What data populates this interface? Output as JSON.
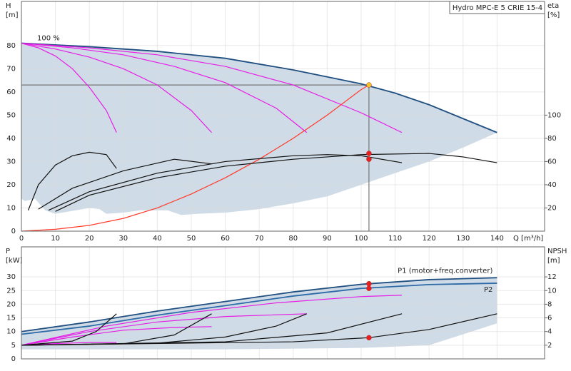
{
  "chart_data": [
    {
      "type": "line",
      "title": "Hydro MPC-E 5 CRIE 15-4",
      "ylabel": "H",
      "yunit": "[m]",
      "y2label": "eta",
      "y2unit": "[%]",
      "xlabel": "Q [m³/h]",
      "xlim": [
        0,
        154
      ],
      "ylim": [
        0,
        99
      ],
      "y2lim": [
        0,
        198
      ],
      "xticks": [
        0,
        10,
        20,
        30,
        40,
        50,
        60,
        70,
        80,
        90,
        100,
        110,
        120,
        130,
        140
      ],
      "yticks": [
        0,
        10,
        20,
        30,
        40,
        50,
        60,
        70,
        80
      ],
      "y2ticks": [
        20,
        40,
        60,
        80,
        100
      ],
      "grid": true,
      "envelope": {
        "color": "#cfdbe6",
        "x": [
          0,
          20,
          40,
          60,
          80,
          100,
          110,
          120,
          130,
          140,
          130,
          120,
          110,
          100,
          90,
          80,
          70,
          60,
          52,
          47,
          43,
          35,
          30,
          25,
          23,
          20,
          12,
          10,
          7,
          4,
          1,
          0
        ],
        "values": [
          81,
          79.5,
          77.5,
          74.5,
          69.5,
          63.5,
          59.5,
          54.5,
          48.5,
          42.5,
          36,
          30,
          25,
          20,
          15,
          12,
          9.5,
          8,
          7.5,
          7,
          9,
          9,
          8,
          7.5,
          9.5,
          10,
          8,
          7.5,
          9,
          14,
          13,
          14
        ]
      },
      "series": [
        {
          "name": "100 %",
          "color": "#1f4e80",
          "x": [
            0,
            20,
            40,
            60,
            80,
            100,
            110,
            120,
            130,
            140
          ],
          "values": [
            81,
            79.5,
            77.5,
            74.5,
            69.5,
            63.5,
            59.5,
            54.5,
            48.5,
            42.5
          ]
        },
        {
          "color": "#e61ee6",
          "x": [
            0,
            5,
            10,
            15,
            20,
            25,
            28
          ],
          "values": [
            81,
            79,
            75.5,
            70,
            62,
            52,
            42.5
          ]
        },
        {
          "color": "#e61ee6",
          "x": [
            0,
            10,
            20,
            30,
            40,
            50,
            56
          ],
          "values": [
            81,
            78.5,
            75,
            70,
            63,
            52,
            42.5
          ]
        },
        {
          "color": "#e61ee6",
          "x": [
            0,
            15,
            30,
            45,
            60,
            75,
            84
          ],
          "values": [
            81,
            79,
            76,
            71,
            64,
            53,
            42.5
          ]
        },
        {
          "color": "#e61ee6",
          "x": [
            0,
            20,
            40,
            60,
            80,
            100,
            112
          ],
          "values": [
            81,
            79,
            76,
            71,
            63,
            51,
            42.5
          ]
        },
        {
          "color": "#ff3a2a",
          "x": [
            0,
            10,
            20,
            30,
            40,
            50,
            60,
            70,
            80,
            90,
            100,
            102.3
          ],
          "values": [
            0,
            0.8,
            2.5,
            5.5,
            10,
            16,
            23,
            31,
            40,
            50,
            61,
            63
          ]
        },
        {
          "color": "#111111",
          "axis": "y2",
          "x": [
            2,
            5,
            10,
            15,
            20,
            25,
            28
          ],
          "values": [
            18,
            40,
            57,
            65,
            68,
            66,
            54
          ]
        },
        {
          "color": "#111111",
          "axis": "y2",
          "x": [
            5,
            15,
            30,
            45,
            56
          ],
          "values": [
            19,
            37,
            52,
            62,
            58
          ]
        },
        {
          "color": "#111111",
          "axis": "y2",
          "x": [
            8,
            20,
            40,
            60,
            80,
            90,
            100,
            112
          ],
          "values": [
            18,
            34,
            50,
            60,
            65,
            66,
            65,
            59
          ]
        },
        {
          "color": "#111111",
          "axis": "y2",
          "x": [
            10,
            20,
            40,
            60,
            80,
            100,
            120,
            130,
            140
          ],
          "values": [
            17,
            31,
            46,
            56,
            62,
            66,
            67,
            64,
            59
          ]
        }
      ],
      "points": [
        {
          "x": 102.3,
          "y": 63,
          "color": "#f5c02a"
        },
        {
          "x": 102.3,
          "y": 67,
          "axis": "y2",
          "color": "#e62020"
        },
        {
          "x": 102.3,
          "y": 62,
          "axis": "y2",
          "color": "#e62020"
        }
      ]
    },
    {
      "type": "line",
      "ylabel": "P",
      "yunit": "[kW]",
      "y2label": "NPSH",
      "y2unit": "[m]",
      "xlim": [
        0,
        154
      ],
      "ylim": [
        0,
        41
      ],
      "y2lim": [
        0,
        16.4
      ],
      "xticks": [
        0,
        10,
        20,
        30,
        40,
        50,
        60,
        70,
        80,
        90,
        100,
        110,
        120,
        130,
        140
      ],
      "yticks": [
        0,
        5,
        10,
        15,
        20,
        25,
        30
      ],
      "y2ticks": [
        2,
        4,
        6,
        8,
        10,
        12
      ],
      "grid": true,
      "envelope": {
        "color": "#cfdbe6",
        "x": [
          0,
          20,
          40,
          60,
          80,
          100,
          120,
          140,
          140,
          120,
          100,
          60,
          20,
          0
        ],
        "values": [
          10,
          13.5,
          17.5,
          21,
          24.5,
          27.3,
          29,
          29.7,
          13,
          5,
          4,
          3.5,
          3.5,
          3.5
        ]
      },
      "series": [
        {
          "name": "P1 (motor+freq.converter)",
          "color": "#1f4e80",
          "x": [
            0,
            20,
            40,
            60,
            80,
            100,
            120,
            140
          ],
          "values": [
            10,
            13.5,
            17.5,
            21,
            24.5,
            27.3,
            29,
            29.7
          ]
        },
        {
          "name": "P2",
          "color": "#2d6aa8",
          "x": [
            0,
            20,
            40,
            60,
            80,
            100,
            120,
            140
          ],
          "values": [
            9,
            12,
            16,
            19.5,
            23,
            25.8,
            27.2,
            27.7
          ]
        },
        {
          "color": "#e61ee6",
          "x": [
            0,
            10,
            20,
            28
          ],
          "values": [
            5,
            5.6,
            6,
            6
          ]
        },
        {
          "color": "#e61ee6",
          "x": [
            0,
            15,
            30,
            45,
            56
          ],
          "values": [
            5,
            8,
            10.5,
            11.5,
            11.8
          ]
        },
        {
          "color": "#e61ee6",
          "x": [
            0,
            20,
            40,
            60,
            84
          ],
          "values": [
            5,
            10,
            13.5,
            15.5,
            16.5
          ]
        },
        {
          "color": "#e61ee6",
          "x": [
            0,
            25,
            50,
            75,
            100,
            112
          ],
          "values": [
            5,
            12,
            17,
            20.5,
            22.8,
            23.3
          ]
        },
        {
          "color": "#111111",
          "axis": "y2",
          "x": [
            0,
            15,
            22,
            28
          ],
          "values": [
            2,
            2.6,
            4,
            6.6
          ]
        },
        {
          "color": "#111111",
          "axis": "y2",
          "x": [
            0,
            30,
            45,
            56
          ],
          "values": [
            2,
            2.2,
            3.5,
            6.6
          ]
        },
        {
          "color": "#111111",
          "axis": "y2",
          "x": [
            0,
            40,
            60,
            75,
            84
          ],
          "values": [
            2,
            2.3,
            3.2,
            4.8,
            6.6
          ]
        },
        {
          "color": "#111111",
          "axis": "y2",
          "x": [
            0,
            60,
            90,
            112
          ],
          "values": [
            2,
            2.5,
            3.8,
            6.6
          ]
        },
        {
          "color": "#111111",
          "axis": "y2",
          "x": [
            0,
            80,
            102.3,
            120,
            140
          ],
          "values": [
            2,
            2.5,
            3.1,
            4.3,
            6.6
          ]
        }
      ],
      "points": [
        {
          "x": 102.3,
          "y": 27.5,
          "color": "#e62020"
        },
        {
          "x": 102.3,
          "y": 25.8,
          "color": "#e62020"
        },
        {
          "x": 102.3,
          "y": 3.1,
          "axis": "y2",
          "color": "#e62020"
        }
      ]
    }
  ]
}
